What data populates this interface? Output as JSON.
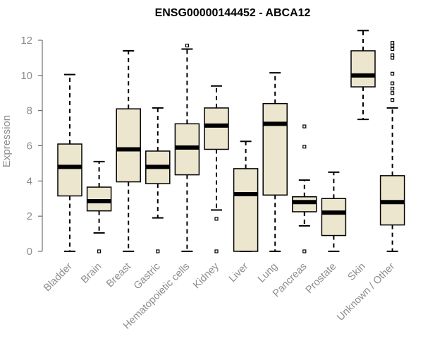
{
  "chart_data": {
    "type": "boxplot",
    "title": "ENSG00000144452 - ABCA12",
    "xlabel": "",
    "ylabel": "Expression",
    "ylim": [
      0,
      12
    ],
    "yticks": [
      0,
      2,
      4,
      6,
      8,
      10,
      12
    ],
    "grid": false,
    "box_color": "#ede6cf",
    "categories": [
      "Bladder",
      "Brain",
      "Breast",
      "Gastric",
      "Hematopoietic cells",
      "Kidney",
      "Liver",
      "Lung",
      "Pancreas",
      "Prostate",
      "Skin",
      "Unknown / Other"
    ],
    "boxes": [
      {
        "name": "Bladder",
        "whisker_low": 0.0,
        "q1": 3.15,
        "median": 4.8,
        "q3": 6.1,
        "whisker_high": 10.05,
        "outliers": []
      },
      {
        "name": "Brain",
        "whisker_low": 1.05,
        "q1": 2.3,
        "median": 2.85,
        "q3": 3.65,
        "whisker_high": 5.1,
        "outliers": [
          0.0
        ]
      },
      {
        "name": "Breast",
        "whisker_low": 0.0,
        "q1": 3.95,
        "median": 5.8,
        "q3": 8.1,
        "whisker_high": 11.4,
        "outliers": []
      },
      {
        "name": "Gastric",
        "whisker_low": 1.9,
        "q1": 3.85,
        "median": 4.8,
        "q3": 5.7,
        "whisker_high": 8.15,
        "outliers": [
          0.0
        ]
      },
      {
        "name": "Hematopoietic cells",
        "whisker_low": 0.0,
        "q1": 4.35,
        "median": 5.9,
        "q3": 7.25,
        "whisker_high": 11.5,
        "outliers": [
          11.7
        ]
      },
      {
        "name": "Kidney",
        "whisker_low": 2.35,
        "q1": 5.8,
        "median": 7.15,
        "q3": 8.15,
        "whisker_high": 9.4,
        "outliers": [
          1.85,
          0.0
        ]
      },
      {
        "name": "Liver",
        "whisker_low": 0.0,
        "q1": 0.0,
        "median": 3.25,
        "q3": 4.7,
        "whisker_high": 6.25,
        "outliers": []
      },
      {
        "name": "Lung",
        "whisker_low": 0.0,
        "q1": 3.2,
        "median": 7.25,
        "q3": 8.4,
        "whisker_high": 10.15,
        "outliers": []
      },
      {
        "name": "Pancreas",
        "whisker_low": 1.45,
        "q1": 2.25,
        "median": 2.8,
        "q3": 3.1,
        "whisker_high": 4.05,
        "outliers": [
          7.1,
          5.95,
          0.0
        ]
      },
      {
        "name": "Prostate",
        "whisker_low": 0.0,
        "q1": 0.9,
        "median": 2.2,
        "q3": 3.0,
        "whisker_high": 4.5,
        "outliers": []
      },
      {
        "name": "Skin",
        "whisker_low": 7.5,
        "q1": 9.35,
        "median": 10.0,
        "q3": 11.4,
        "whisker_high": 12.55,
        "outliers": []
      },
      {
        "name": "Unknown / Other",
        "whisker_low": 0.0,
        "q1": 1.5,
        "median": 2.8,
        "q3": 4.3,
        "whisker_high": 8.15,
        "outliers": [
          11.85,
          11.7,
          11.5,
          11.15,
          11.0,
          10.1,
          9.55,
          9.25,
          9.0,
          8.6
        ]
      }
    ]
  }
}
